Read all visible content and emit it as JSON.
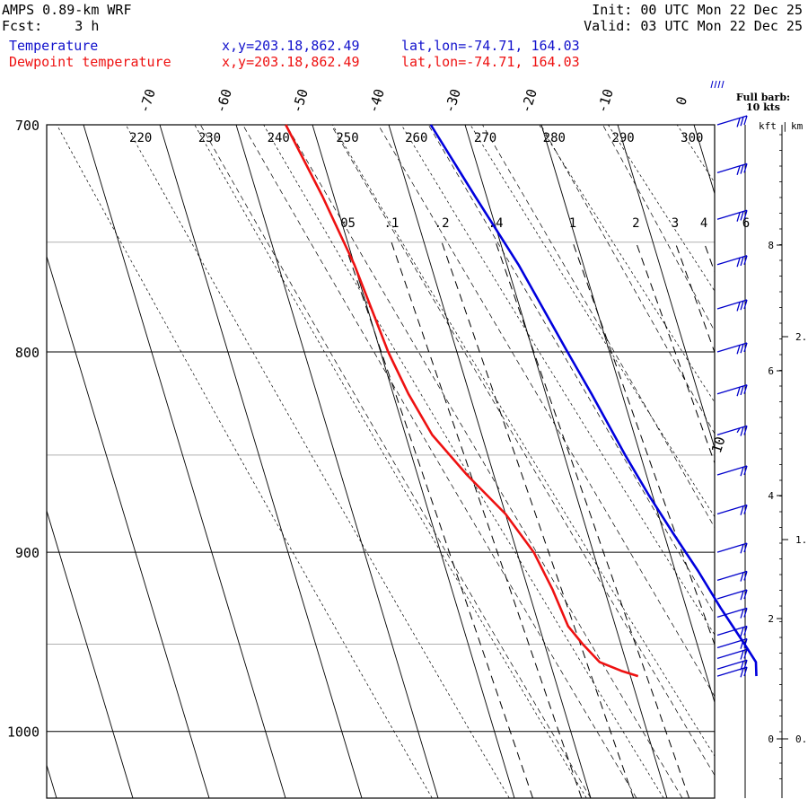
{
  "header": {
    "model": "AMPS 0.89-km WRF",
    "fcst": "Fcst:    3 h",
    "init": "Init: 00 UTC Mon 22 Dec 25",
    "valid": "Valid: 03 UTC Mon 22 Dec 25",
    "temp_label": "Temperature",
    "dew_label": "Dewpoint temperature",
    "temp_xy": "x,y=203.18,862.49",
    "dew_xy": "x,y=203.18,862.49",
    "temp_latlon": "lat,lon=-74.71, 164.03",
    "dew_latlon": "lat,lon=-74.71, 164.03",
    "barb_note_1": "Full barb:",
    "barb_note_2": "10 kts",
    "kft_label": "kft",
    "km_label": "km"
  },
  "colors": {
    "temperature": "#0000dd",
    "dewpoint": "#ee1111",
    "barbs": "#0000cc"
  },
  "chart_data": {
    "type": "line",
    "diagram": "skew-T log-p",
    "ylim_hpa": [
      1040,
      700
    ],
    "pressure_ticks": [
      700,
      800,
      900,
      1000
    ],
    "pressure_labels": [
      "700",
      "800",
      "900",
      "1000"
    ],
    "isotherm_labels": [
      "-70",
      "-60",
      "-50",
      "-40",
      "-30",
      "-20",
      "-10",
      "0",
      "10"
    ],
    "theta_labels": [
      "220",
      "230",
      "240",
      "250",
      "260",
      "270",
      "280",
      "290",
      "300"
    ],
    "mixing_ratio_labels": [
      ".05",
      ".1",
      ".2",
      ".4",
      "1",
      "2",
      "3",
      "4",
      "6"
    ],
    "kft_ticks": [
      "0",
      "2",
      "4",
      "6",
      "8"
    ],
    "km_ticks": [
      "0.",
      "1.",
      "2."
    ],
    "series": [
      {
        "name": "Temperature",
        "points": [
          {
            "p": 968,
            "t": -13.5
          },
          {
            "p": 960,
            "t": -13.0
          },
          {
            "p": 950,
            "t": -13.8
          },
          {
            "p": 930,
            "t": -15.5
          },
          {
            "p": 910,
            "t": -17.0
          },
          {
            "p": 890,
            "t": -18.8
          },
          {
            "p": 870,
            "t": -20.5
          },
          {
            "p": 850,
            "t": -22.0
          },
          {
            "p": 820,
            "t": -24.0
          },
          {
            "p": 800,
            "t": -25.5
          },
          {
            "p": 760,
            "t": -28.5
          },
          {
            "p": 730,
            "t": -31.5
          },
          {
            "p": 700,
            "t": -34.5
          }
        ]
      },
      {
        "name": "Dewpoint temperature",
        "points": [
          {
            "p": 968,
            "t": -29.0
          },
          {
            "p": 965,
            "t": -31.0
          },
          {
            "p": 960,
            "t": -33.5
          },
          {
            "p": 950,
            "t": -35.0
          },
          {
            "p": 940,
            "t": -36.2
          },
          {
            "p": 920,
            "t": -36.8
          },
          {
            "p": 900,
            "t": -37.8
          },
          {
            "p": 880,
            "t": -40.0
          },
          {
            "p": 860,
            "t": -43.5
          },
          {
            "p": 840,
            "t": -46.5
          },
          {
            "p": 820,
            "t": -48.0
          },
          {
            "p": 800,
            "t": -49.0
          },
          {
            "p": 780,
            "t": -49.5
          },
          {
            "p": 760,
            "t": -50.0
          },
          {
            "p": 730,
            "t": -51.5
          },
          {
            "p": 700,
            "t": -53.5
          }
        ]
      }
    ],
    "wind_barbs": [
      {
        "p": 700,
        "kts": 30
      },
      {
        "p": 720,
        "kts": 30
      },
      {
        "p": 740,
        "kts": 30
      },
      {
        "p": 760,
        "kts": 30
      },
      {
        "p": 780,
        "kts": 30
      },
      {
        "p": 800,
        "kts": 30
      },
      {
        "p": 820,
        "kts": 30
      },
      {
        "p": 840,
        "kts": 25
      },
      {
        "p": 860,
        "kts": 20
      },
      {
        "p": 880,
        "kts": 20
      },
      {
        "p": 900,
        "kts": 20
      },
      {
        "p": 915,
        "kts": 20
      },
      {
        "p": 925,
        "kts": 20
      },
      {
        "p": 935,
        "kts": 20
      },
      {
        "p": 945,
        "kts": 20
      },
      {
        "p": 952,
        "kts": 20
      },
      {
        "p": 958,
        "kts": 20
      },
      {
        "p": 964,
        "kts": 20
      },
      {
        "p": 968,
        "kts": 20
      }
    ]
  }
}
